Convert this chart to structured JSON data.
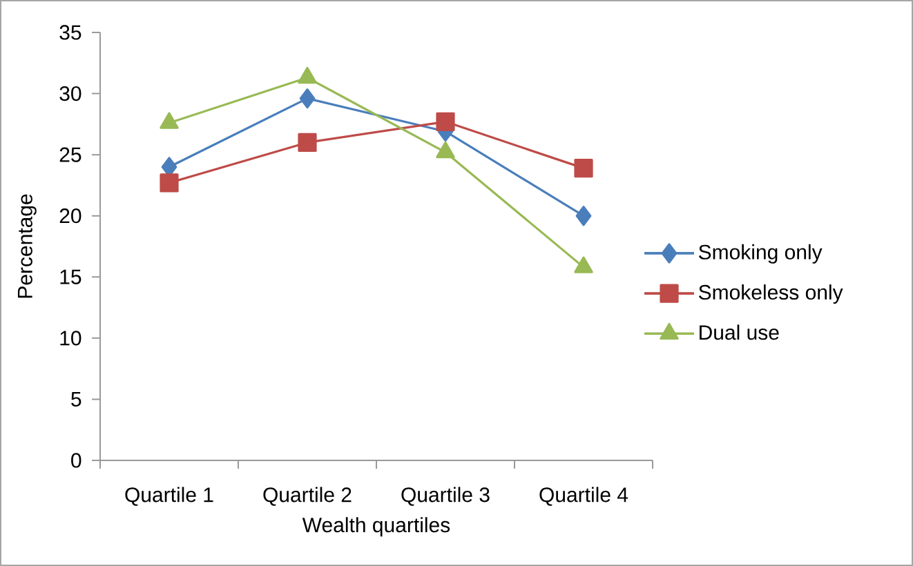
{
  "chart_data": {
    "type": "line",
    "xlabel": "Wealth quartiles",
    "ylabel": "Percentage",
    "categories": [
      "Quartile 1",
      "Quartile 2",
      "Quartile 3",
      "Quartile 4"
    ],
    "ylim": [
      0,
      35
    ],
    "yticks": [
      0,
      5,
      10,
      15,
      20,
      25,
      30,
      35
    ],
    "legend": "right",
    "line_style": "solid",
    "series": [
      {
        "name": "Smoking only",
        "color": "#4a7ebb",
        "marker": "diamond",
        "values": [
          24.0,
          29.6,
          26.9,
          20.0
        ]
      },
      {
        "name": "Smokeless only",
        "color": "#be4b48",
        "marker": "square",
        "values": [
          22.7,
          26.0,
          27.7,
          23.9
        ]
      },
      {
        "name": "Dual use",
        "color": "#98b954",
        "marker": "triangle",
        "values": [
          27.6,
          31.3,
          25.2,
          15.8
        ]
      }
    ]
  }
}
